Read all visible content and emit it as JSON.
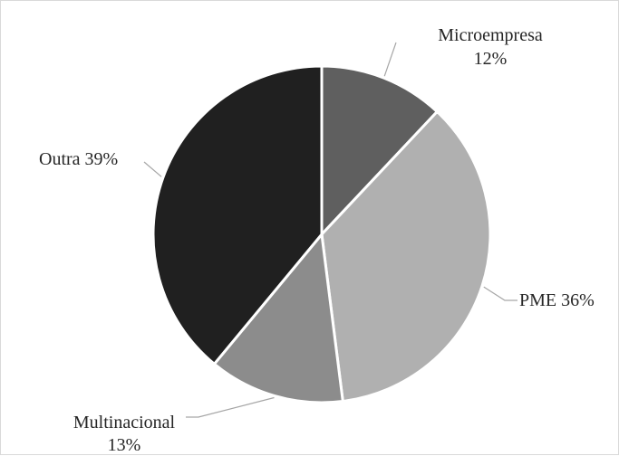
{
  "chart_data": {
    "type": "pie",
    "title": "",
    "slices": [
      {
        "category": "Microempresa",
        "label": "Microempresa",
        "value_label": "12%",
        "value": 12,
        "color": "#5f5f5f"
      },
      {
        "category": "PME",
        "label": "PME",
        "value_label": "36%",
        "value": 36,
        "color": "#b0b0b0"
      },
      {
        "category": "Multinacional",
        "label": "Multinacional",
        "value_label": "13%",
        "value": 13,
        "color": "#8c8c8c"
      },
      {
        "category": "Outra",
        "label": "Outra",
        "value_label": "39%",
        "value": 39,
        "color": "#202020"
      }
    ],
    "start_angle": "12 o'clock",
    "direction": "clockwise",
    "separator_color": "#ffffff",
    "leader_line_color": "#a6a6a6",
    "label_color": "#262626"
  }
}
